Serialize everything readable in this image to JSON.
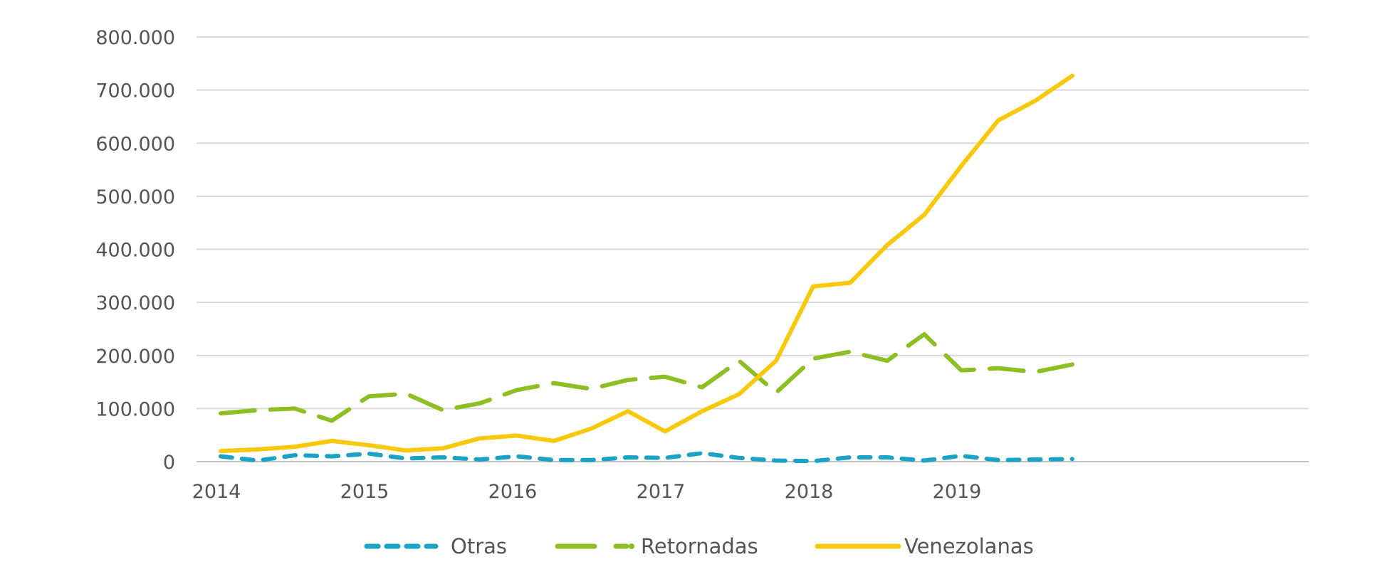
{
  "chart_data": {
    "type": "line",
    "x": [
      "2014-Q1",
      "2014-Q2",
      "2014-Q3",
      "2014-Q4",
      "2015-Q1",
      "2015-Q2",
      "2015-Q3",
      "2015-Q4",
      "2016-Q1",
      "2016-Q2",
      "2016-Q3",
      "2016-Q4",
      "2017-Q1",
      "2017-Q2",
      "2017-Q3",
      "2017-Q4",
      "2018-Q1",
      "2018-Q2",
      "2018-Q3",
      "2018-Q4",
      "2019-Q1",
      "2019-Q2",
      "2019-Q3",
      "2019-Q4"
    ],
    "x_tick_labels": [
      "2014",
      "2015",
      "2016",
      "2017",
      "2018",
      "2019"
    ],
    "y_tick_labels": [
      "0",
      "100.000",
      "200.000",
      "300.000",
      "400.000",
      "500.000",
      "600.000",
      "700.000",
      "800.000"
    ],
    "ylim": [
      0,
      800000
    ],
    "grid": true,
    "legend_position": "bottom",
    "series": [
      {
        "name": "Otras",
        "color": "#1ba3c6",
        "dash": "dashed",
        "values": [
          10000,
          2000,
          12000,
          10000,
          15000,
          6000,
          8000,
          4000,
          10000,
          3000,
          3000,
          8000,
          7000,
          16000,
          7000,
          2000,
          1000,
          8000,
          8000,
          2000,
          11000,
          3000,
          4000,
          5000
        ]
      },
      {
        "name": "Retornadas",
        "color": "#8dbe22",
        "dash": "longdash",
        "values": [
          91000,
          97000,
          100000,
          77000,
          123000,
          128000,
          97000,
          110000,
          135000,
          148000,
          137000,
          154000,
          160000,
          140000,
          190000,
          130000,
          194000,
          207000,
          190000,
          240000,
          172000,
          176000,
          169000,
          183000
        ]
      },
      {
        "name": "Venezolanas",
        "color": "#f8c90b",
        "dash": "solid",
        "values": [
          20000,
          23000,
          28000,
          39000,
          31000,
          21000,
          25000,
          44000,
          49000,
          39000,
          62000,
          95000,
          57000,
          95000,
          127000,
          190000,
          330000,
          337000,
          408000,
          465000,
          557000,
          643000,
          680000,
          727000
        ]
      }
    ]
  }
}
